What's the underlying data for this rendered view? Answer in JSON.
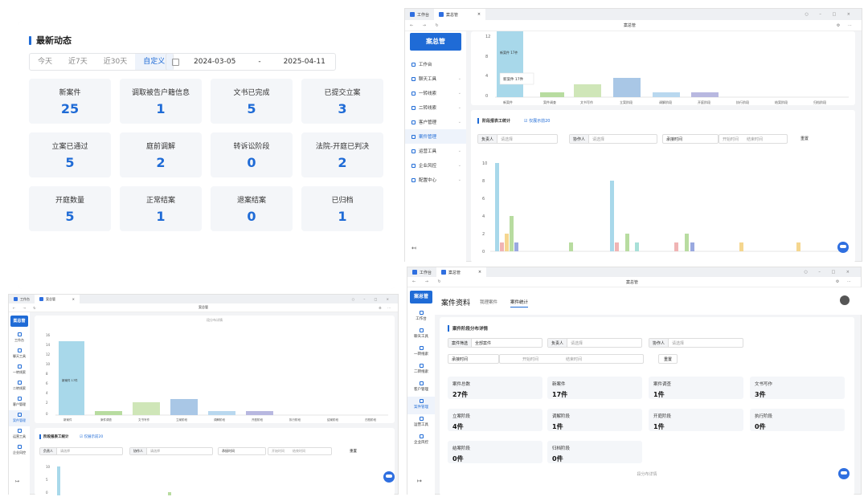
{
  "dashboard": {
    "title": "最新动态",
    "tabs": [
      "今天",
      "近7天",
      "近30天",
      "自定义"
    ],
    "date_start": "2024-03-05",
    "date_sep": "-",
    "date_end": "2025-04-11",
    "kpis": [
      {
        "label": "新案件",
        "value": "25"
      },
      {
        "label": "调取被告户籍信息",
        "value": "1"
      },
      {
        "label": "文书已完成",
        "value": "5"
      },
      {
        "label": "已提交立案",
        "value": "3"
      },
      {
        "label": "立案已通过",
        "value": "5"
      },
      {
        "label": "庭前调解",
        "value": "2"
      },
      {
        "label": "转诉讼阶段",
        "value": "0"
      },
      {
        "label": "法院-开庭已判决",
        "value": "2"
      },
      {
        "label": "开庭数量",
        "value": "5"
      },
      {
        "label": "正常结案",
        "value": "1"
      },
      {
        "label": "退案结案",
        "value": "0"
      },
      {
        "label": "已归档",
        "value": "1"
      }
    ]
  },
  "app": {
    "tab_workbench": "工作台",
    "tab_app": "案总管",
    "window_title": "案总管",
    "logo": "案总管",
    "menu": [
      "工作台",
      "聊天工具",
      "一转线索",
      "二转线索",
      "客户管理",
      "案件管理",
      "运营工具",
      "企业风控",
      "配置中心"
    ],
    "menu_short": [
      "工作台",
      "聊天工具",
      "一转线索",
      "二转线索",
      "客户管理",
      "案件管理",
      "运营工具",
      "企业风控"
    ]
  },
  "stage_chart": {
    "y_ticks": [
      "12",
      "8",
      "4",
      "0"
    ],
    "y_ticks_small": [
      "16",
      "14",
      "12",
      "10",
      "8",
      "6",
      "4",
      "2",
      "0"
    ],
    "categories": [
      "新案件",
      "案件调查",
      "文书写作",
      "立案阶段",
      "调解阶段",
      "开庭阶段",
      "执行阶段",
      "结案阶段",
      "归档阶段"
    ],
    "tooltip": "新案件 17件",
    "bar_label": "新案件 17件",
    "caption": "段分布详情"
  },
  "staff_chart": {
    "title": "阶段报表工统计",
    "checkbox": "仅展示前20",
    "f_owner": "负责人",
    "f_assist": "协作人",
    "f_time": "承接时间",
    "ph_select": "请选择",
    "ph_start": "开始时间",
    "ph_end": "结束时间",
    "reset": "重置",
    "y_ticks": [
      "10",
      "8",
      "6",
      "4",
      "2",
      "0"
    ],
    "y_ticks_small": [
      "10",
      "5",
      "0"
    ]
  },
  "case_stats": {
    "page_title": "案件资料",
    "tab_mine": "我理案件",
    "tab_stats": "案件统计",
    "section": "案件阶段分布详情",
    "f_filter": "案件筛选",
    "filter_value": "全部案件",
    "f_owner": "负责人",
    "f_assist": "协作人",
    "f_time": "承接时间",
    "ph_select": "请选择",
    "ph_start": "开始时间",
    "ph_end": "结束时间",
    "reset": "重置",
    "stats": [
      {
        "label": "案件总数",
        "value": "27件"
      },
      {
        "label": "新案件",
        "value": "17件"
      },
      {
        "label": "案件调查",
        "value": "1件"
      },
      {
        "label": "文书写作",
        "value": "3件"
      },
      {
        "label": "立案阶段",
        "value": "4件"
      },
      {
        "label": "调解阶段",
        "value": "1件"
      },
      {
        "label": "开庭阶段",
        "value": "1件"
      },
      {
        "label": "执行阶段",
        "value": "0件"
      },
      {
        "label": "结案阶段",
        "value": "0件"
      },
      {
        "label": "归档阶段",
        "value": "0件"
      }
    ],
    "footer": "段分布详情"
  },
  "colors": {
    "accent": "#1f6bd6",
    "bar_blue": "#a8d8ea",
    "bar_green": "#b8dca0"
  }
}
